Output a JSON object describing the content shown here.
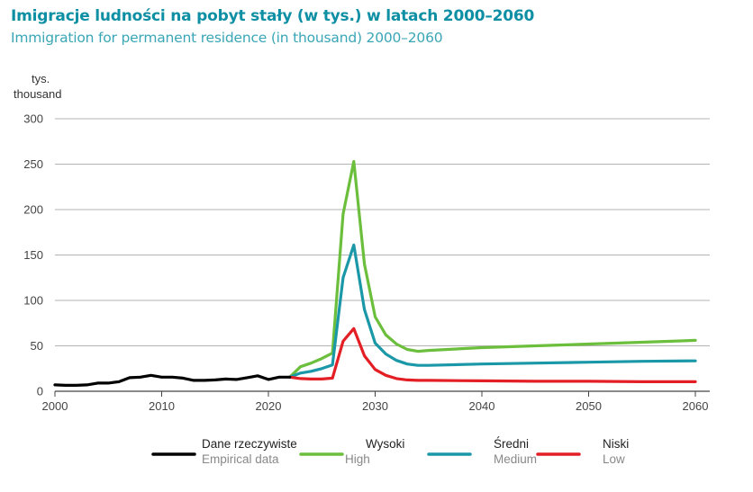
{
  "chart_data": {
    "type": "line",
    "title": "Imigracje ludności na pobyt stały (w tys.) w latach 2000–2060",
    "subtitle": "Immigration for permanent residence (in thousand) 2000–2060",
    "ylabel_line1": "tys.",
    "ylabel_line2": "thousand",
    "xlim": [
      2000,
      2060
    ],
    "ylim": [
      0,
      300
    ],
    "xticks": [
      2000,
      2010,
      2020,
      2030,
      2040,
      2050,
      2060
    ],
    "yticks": [
      0,
      50,
      100,
      150,
      200,
      250,
      300
    ],
    "grid": true,
    "legend_position": "bottom",
    "series": [
      {
        "name": "Dane rzeczywiste",
        "name_en": "Empirical data",
        "color": "#000000",
        "points": [
          [
            2000,
            7
          ],
          [
            2001,
            6.5
          ],
          [
            2002,
            6.5
          ],
          [
            2003,
            7
          ],
          [
            2004,
            9
          ],
          [
            2005,
            9
          ],
          [
            2006,
            10.5
          ],
          [
            2007,
            15
          ],
          [
            2008,
            15.5
          ],
          [
            2009,
            17.5
          ],
          [
            2010,
            15.5
          ],
          [
            2011,
            15.5
          ],
          [
            2012,
            14.5
          ],
          [
            2013,
            12
          ],
          [
            2014,
            12
          ],
          [
            2015,
            12.5
          ],
          [
            2016,
            13.5
          ],
          [
            2017,
            13
          ],
          [
            2018,
            15
          ],
          [
            2019,
            17
          ],
          [
            2020,
            13
          ],
          [
            2021,
            15.5
          ],
          [
            2022,
            15.5
          ]
        ]
      },
      {
        "name": "Wysoki",
        "name_en": "High",
        "color": "#6cbf3c",
        "points": [
          [
            2022,
            15.5
          ],
          [
            2023,
            27
          ],
          [
            2024,
            31
          ],
          [
            2025,
            36
          ],
          [
            2026,
            42
          ],
          [
            2027,
            195
          ],
          [
            2028,
            253
          ],
          [
            2029,
            140
          ],
          [
            2030,
            82
          ],
          [
            2031,
            62
          ],
          [
            2032,
            52
          ],
          [
            2033,
            46
          ],
          [
            2034,
            44
          ],
          [
            2035,
            45
          ],
          [
            2040,
            48
          ],
          [
            2045,
            50
          ],
          [
            2050,
            52
          ],
          [
            2055,
            54
          ],
          [
            2060,
            56
          ]
        ]
      },
      {
        "name": "Średni",
        "name_en": "Medium",
        "color": "#1b98a8",
        "points": [
          [
            2022,
            15.5
          ],
          [
            2023,
            20
          ],
          [
            2024,
            22
          ],
          [
            2025,
            25
          ],
          [
            2026,
            29
          ],
          [
            2027,
            125
          ],
          [
            2028,
            161
          ],
          [
            2029,
            90
          ],
          [
            2030,
            53
          ],
          [
            2031,
            41
          ],
          [
            2032,
            34
          ],
          [
            2033,
            30
          ],
          [
            2034,
            28.5
          ],
          [
            2035,
            28.5
          ],
          [
            2040,
            30
          ],
          [
            2045,
            31
          ],
          [
            2050,
            32
          ],
          [
            2055,
            33
          ],
          [
            2060,
            33.5
          ]
        ]
      },
      {
        "name": "Niski",
        "name_en": "Low",
        "color": "#e31e24",
        "points": [
          [
            2022,
            15.5
          ],
          [
            2023,
            14
          ],
          [
            2024,
            13.5
          ],
          [
            2025,
            13.5
          ],
          [
            2026,
            14.5
          ],
          [
            2027,
            55
          ],
          [
            2028,
            69
          ],
          [
            2029,
            39
          ],
          [
            2030,
            24
          ],
          [
            2031,
            17.5
          ],
          [
            2032,
            14
          ],
          [
            2033,
            12.5
          ],
          [
            2034,
            12
          ],
          [
            2035,
            12
          ],
          [
            2040,
            11.5
          ],
          [
            2045,
            11
          ],
          [
            2050,
            11
          ],
          [
            2055,
            10.5
          ],
          [
            2060,
            10.5
          ]
        ]
      }
    ]
  }
}
